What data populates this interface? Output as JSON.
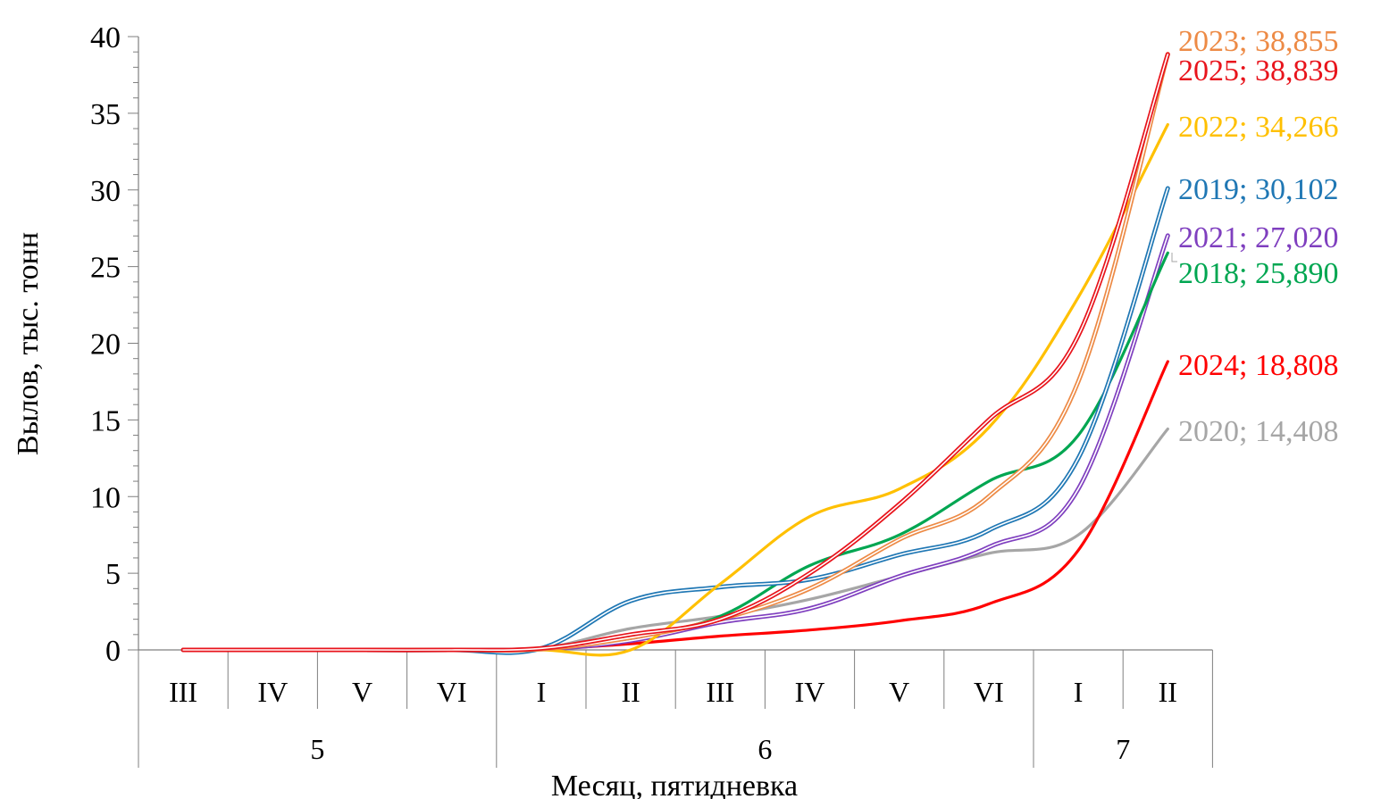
{
  "chart_data": {
    "type": "line",
    "xlabel": "Месяц, пятидневка",
    "ylabel": "Вылов, тыс. тонн",
    "ylim": [
      0,
      40
    ],
    "yticks": [
      "0",
      "5",
      "10",
      "15",
      "20",
      "25",
      "30",
      "35",
      "40"
    ],
    "grid": false,
    "legend": "none",
    "categories": [
      "III",
      "IV",
      "V",
      "VI",
      "I",
      "II",
      "III",
      "IV",
      "V",
      "VI",
      "I",
      "II"
    ],
    "groups": [
      {
        "label": "5",
        "span": 4
      },
      {
        "label": "6",
        "span": 6
      },
      {
        "label": "7",
        "span": 2
      }
    ],
    "series": [
      {
        "year": "2018",
        "color": "#00a651",
        "end_label": "2018; 25,890",
        "style": "single",
        "values": [
          0,
          0,
          0,
          0,
          0.1,
          0.8,
          2.2,
          5.5,
          7.5,
          11,
          14,
          25.89
        ]
      },
      {
        "year": "2019",
        "color": "#1f77b4",
        "end_label": "2019; 30,102",
        "style": "double",
        "values": [
          0,
          0,
          0,
          0,
          0.1,
          3.2,
          4.1,
          4.6,
          6.2,
          7.8,
          12.5,
          30.102
        ]
      },
      {
        "year": "2020",
        "color": "#a6a6a6",
        "end_label": "2020; 14,408",
        "style": "single",
        "values": [
          0,
          0,
          0,
          0,
          0.1,
          1.4,
          2.2,
          3.3,
          4.8,
          6.3,
          7.5,
          14.408
        ]
      },
      {
        "year": "2021",
        "color": "#7f3fbf",
        "end_label": "2021; 27,020",
        "style": "double",
        "values": [
          0,
          0,
          0,
          0,
          0.05,
          0.6,
          1.8,
          2.7,
          4.8,
          6.7,
          10.5,
          27.02
        ]
      },
      {
        "year": "2022",
        "color": "#ffc000",
        "end_label": "2022; 34,266",
        "style": "single",
        "values": [
          0,
          0,
          0,
          0,
          0,
          0,
          4.3,
          8.7,
          10.5,
          14.5,
          23,
          34.266
        ]
      },
      {
        "year": "2023",
        "color": "#ed8a45",
        "end_label": "2023; 38,855",
        "style": "double",
        "values": [
          0,
          0,
          0,
          0,
          0.05,
          0.8,
          2.0,
          4.0,
          7.2,
          10.0,
          17.5,
          38.855
        ]
      },
      {
        "year": "2024",
        "color": "#ff0000",
        "end_label": "2024; 18,808",
        "style": "single",
        "values": [
          0,
          0,
          0,
          0,
          0.05,
          0.4,
          0.9,
          1.3,
          1.9,
          3.0,
          6.5,
          18.808
        ]
      },
      {
        "year": "2025",
        "color": "#e8141c",
        "end_label": "2025; 38,839",
        "style": "double",
        "values": [
          0,
          0,
          0,
          0,
          0.1,
          1.0,
          2.0,
          5.0,
          9.5,
          15.0,
          20.5,
          38.839
        ]
      }
    ]
  }
}
